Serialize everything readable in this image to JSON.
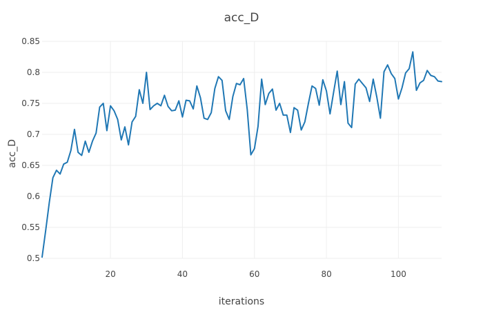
{
  "chart_data": {
    "type": "line",
    "title": "acc_D",
    "xlabel": "iterations",
    "ylabel": "acc_D",
    "xlim": [
      1,
      112
    ],
    "ylim": [
      0.5,
      0.85
    ],
    "x_ticks": [
      20,
      40,
      60,
      80,
      100
    ],
    "y_ticks": [
      0.5,
      0.55,
      0.6,
      0.65,
      0.7,
      0.75,
      0.8,
      0.85
    ],
    "y_tick_labels": [
      "0.5",
      "0.55",
      "0.6",
      "0.65",
      "0.7",
      "0.75",
      "0.8",
      "0.85"
    ],
    "grid": true,
    "series": [
      {
        "color": "#1f77b4",
        "x": [
          1,
          2,
          3,
          4,
          5,
          6,
          7,
          8,
          9,
          10,
          11,
          12,
          13,
          14,
          15,
          16,
          17,
          18,
          19,
          20,
          21,
          22,
          23,
          24,
          25,
          26,
          27,
          28,
          29,
          30,
          31,
          32,
          33,
          34,
          35,
          36,
          37,
          38,
          39,
          40,
          41,
          42,
          43,
          44,
          45,
          46,
          47,
          48,
          49,
          50,
          51,
          52,
          53,
          54,
          55,
          56,
          57,
          58,
          59,
          60,
          61,
          62,
          63,
          64,
          65,
          66,
          67,
          68,
          69,
          70,
          71,
          72,
          73,
          74,
          75,
          76,
          77,
          78,
          79,
          80,
          81,
          82,
          83,
          84,
          85,
          86,
          87,
          88,
          89,
          90,
          91,
          92,
          93,
          94,
          95,
          96,
          97,
          98,
          99,
          100,
          101,
          102,
          103,
          104,
          105,
          106,
          107,
          108,
          109,
          110,
          111,
          112
        ],
        "values": [
          0.502,
          0.545,
          0.59,
          0.63,
          0.642,
          0.636,
          0.652,
          0.655,
          0.674,
          0.708,
          0.671,
          0.666,
          0.689,
          0.671,
          0.689,
          0.702,
          0.744,
          0.75,
          0.706,
          0.746,
          0.738,
          0.724,
          0.691,
          0.712,
          0.683,
          0.72,
          0.729,
          0.772,
          0.75,
          0.8,
          0.74,
          0.746,
          0.75,
          0.746,
          0.763,
          0.745,
          0.738,
          0.739,
          0.754,
          0.728,
          0.755,
          0.754,
          0.741,
          0.778,
          0.759,
          0.726,
          0.724,
          0.735,
          0.774,
          0.793,
          0.787,
          0.738,
          0.724,
          0.761,
          0.782,
          0.78,
          0.79,
          0.74,
          0.667,
          0.677,
          0.713,
          0.789,
          0.748,
          0.766,
          0.773,
          0.739,
          0.75,
          0.731,
          0.731,
          0.703,
          0.743,
          0.739,
          0.707,
          0.72,
          0.75,
          0.778,
          0.774,
          0.747,
          0.788,
          0.77,
          0.733,
          0.768,
          0.802,
          0.748,
          0.785,
          0.718,
          0.711,
          0.781,
          0.789,
          0.782,
          0.775,
          0.753,
          0.789,
          0.76,
          0.726,
          0.801,
          0.812,
          0.798,
          0.79,
          0.757,
          0.775,
          0.799,
          0.806,
          0.833,
          0.771,
          0.783,
          0.787,
          0.803,
          0.795,
          0.793,
          0.786,
          0.785
        ]
      }
    ]
  }
}
